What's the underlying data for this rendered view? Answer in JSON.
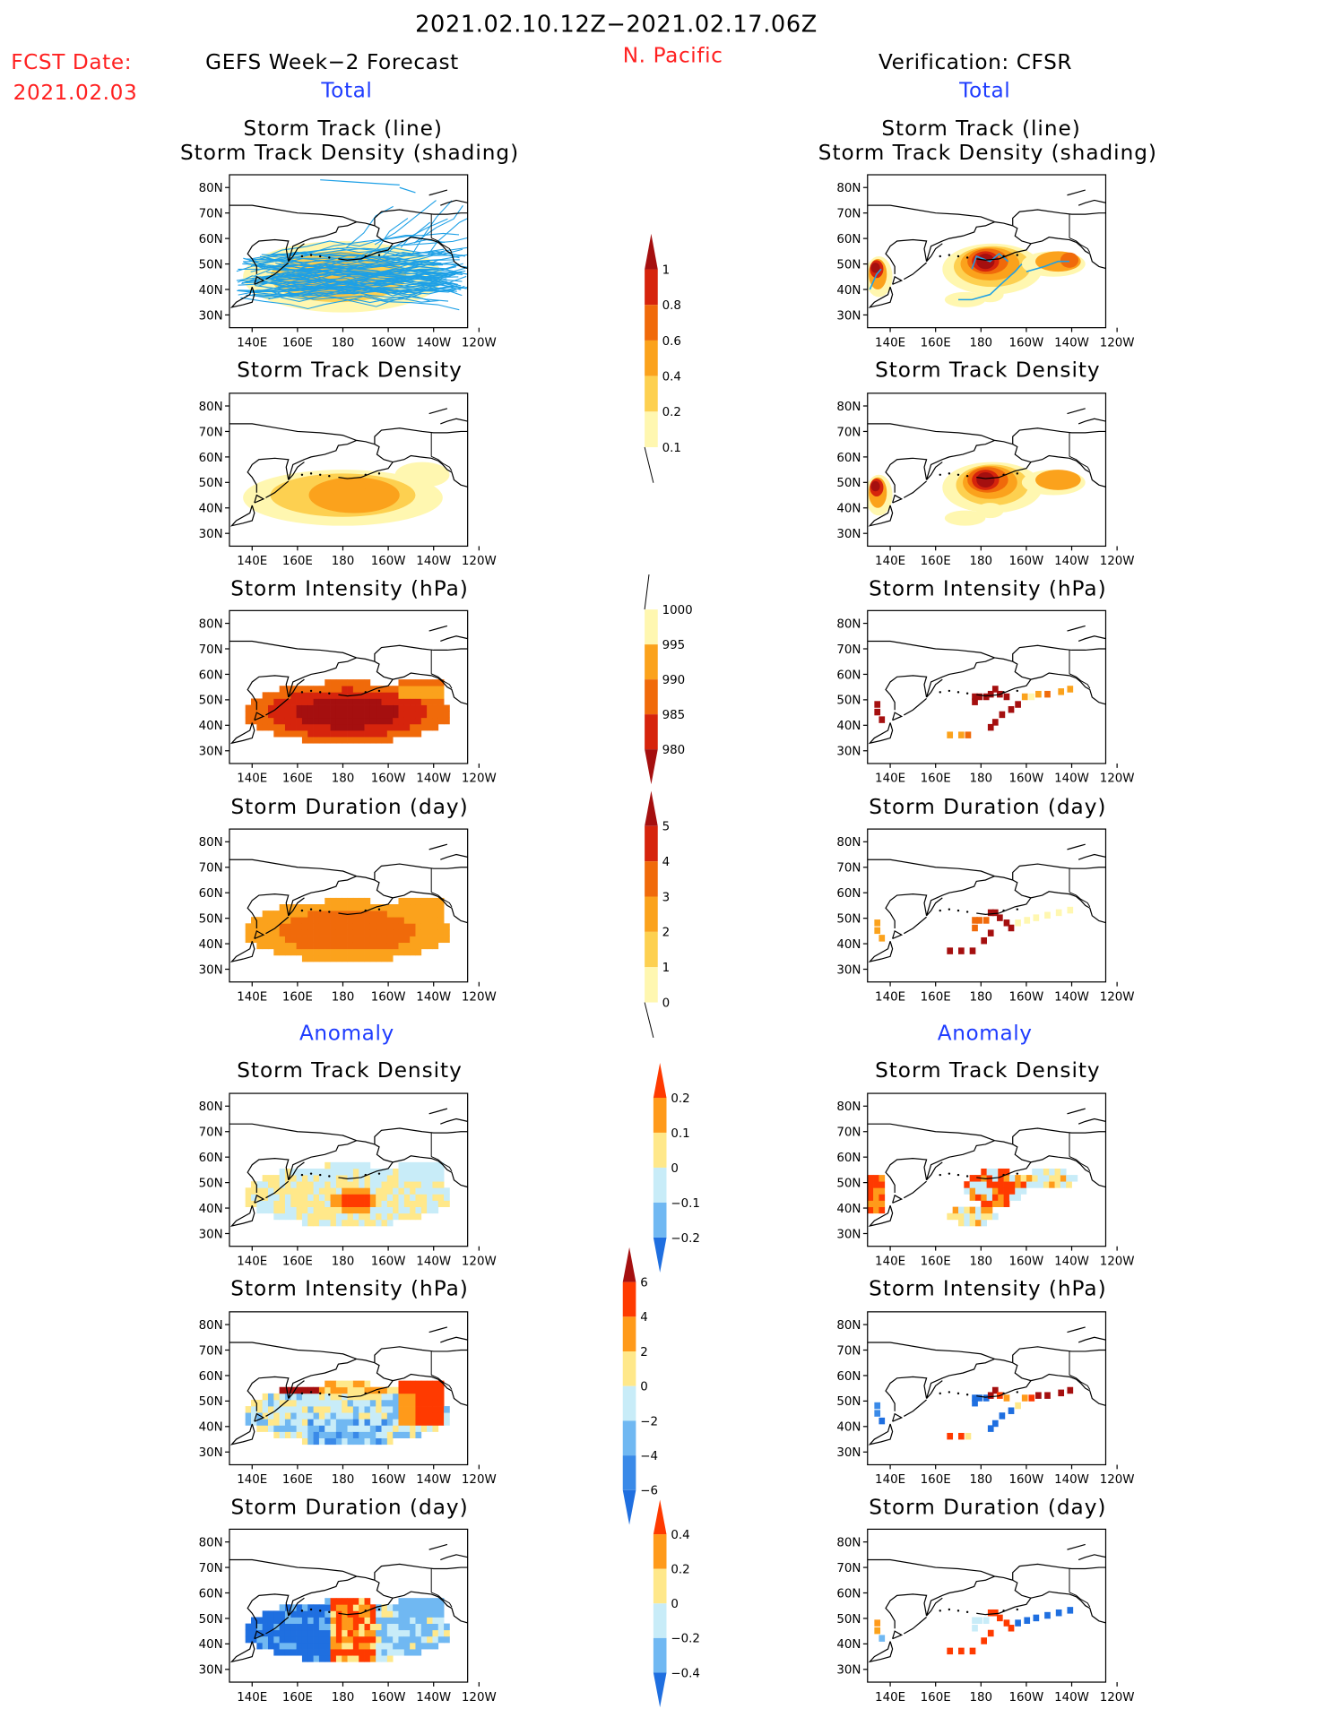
{
  "header": {
    "title": "2021.02.10.12Z−2021.02.17.06Z",
    "region": "N. Pacific",
    "fcst_label": "FCST Date:",
    "fcst_date": "2021.02.03",
    "left_title": "GEFS Week−2 Forecast",
    "right_title": "Verification: CFSR",
    "total_label": "Total",
    "anomaly_label": "Anomaly"
  },
  "panel_titles": {
    "track_line": "Storm Track (line)",
    "track_density_shading": "Storm Track Density (shading)",
    "track_density": "Storm Track Density",
    "intensity": "Storm Intensity (hPa)",
    "duration": "Storm Duration (day)"
  },
  "axes": {
    "lon_ticks": [
      "140E",
      "160E",
      "180",
      "160W",
      "140W",
      "120W"
    ],
    "lat_ticks": [
      "80N",
      "70N",
      "60N",
      "50N",
      "40N",
      "30N"
    ]
  },
  "colorbars": {
    "track_density": {
      "labels": [
        "1",
        "0.8",
        "0.6",
        "0.4",
        "0.2",
        "0.1"
      ],
      "colors": [
        "#a50f0f",
        "#d6240c",
        "#f06a0a",
        "#fba21c",
        "#fdd050",
        "#fff7b0",
        "#ffffff"
      ]
    },
    "intensity": {
      "labels": [
        "1000",
        "995",
        "990",
        "985",
        "980"
      ],
      "colors": [
        "#ffffff",
        "#fff7b0",
        "#fba21c",
        "#f06a0a",
        "#d6240c",
        "#a50f0f"
      ]
    },
    "duration": {
      "labels": [
        "5",
        "4",
        "3",
        "2",
        "1",
        "0"
      ],
      "colors": [
        "#a50f0f",
        "#d6240c",
        "#f06a0a",
        "#fba21c",
        "#fdd050",
        "#fff7b0",
        "#ffffff"
      ]
    },
    "anom_density": {
      "labels": [
        "0.2",
        "0.1",
        "0",
        "−0.1",
        "−0.2"
      ],
      "colors": [
        "#ff3a00",
        "#ff9a1a",
        "#ffe88a",
        "#c8ecf8",
        "#70b8f2",
        "#1f6fe0"
      ]
    },
    "anom_intensity": {
      "labels": [
        "6",
        "4",
        "2",
        "0",
        "−2",
        "−4",
        "−6"
      ],
      "colors": [
        "#a50f0f",
        "#ff3a00",
        "#ff9a1a",
        "#ffe88a",
        "#c8ecf8",
        "#70b8f2",
        "#3a8ae8",
        "#1f6fe0"
      ]
    },
    "anom_duration": {
      "labels": [
        "0.4",
        "0.2",
        "0",
        "−0.2",
        "−0.4"
      ],
      "colors": [
        "#ff3a00",
        "#ff9a1a",
        "#ffe88a",
        "#c8ecf8",
        "#70b8f2",
        "#1f6fe0"
      ]
    }
  }
}
